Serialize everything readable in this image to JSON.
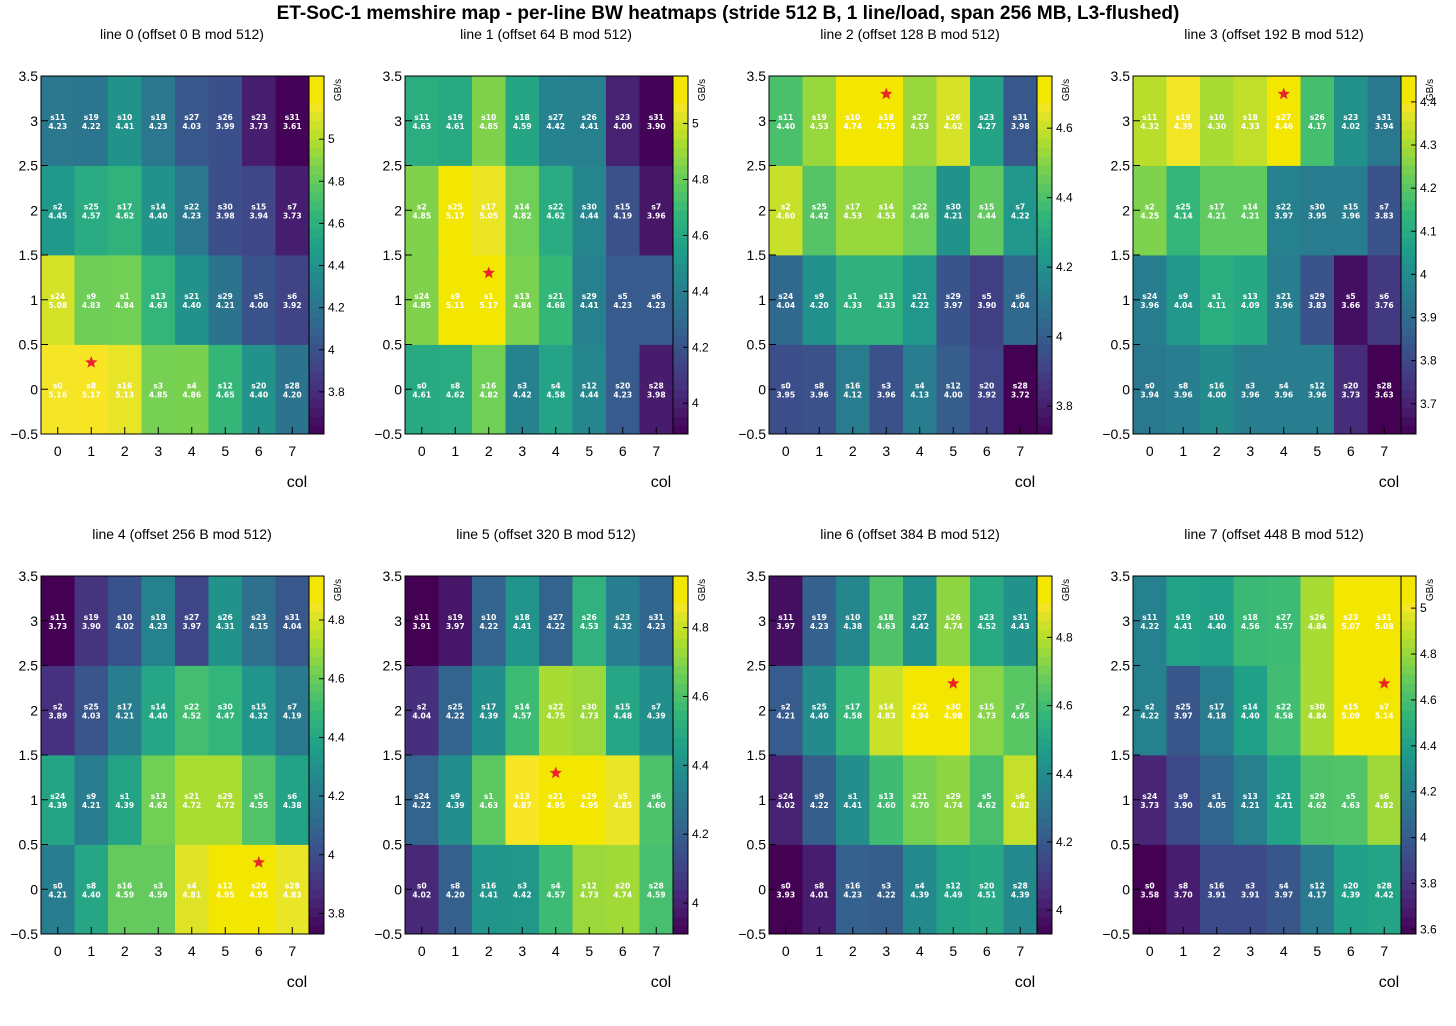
{
  "title": "ET-SoC-1 memshire map  -  per-line BW heatmaps  (stride 512 B, 1 line/load, span 256 MB, L3-flushed)",
  "colormap": "viridis",
  "star_color": "#e8262a",
  "chart_data": [
    {
      "type": "heatmap",
      "title": "line 0  (offset 0 B mod 512)",
      "xlabel": "col",
      "colorbar_label": "GB/s",
      "x": [
        0,
        1,
        2,
        3,
        4,
        5,
        6,
        7
      ],
      "y": [
        0,
        1,
        2,
        3
      ],
      "xlim": [
        -0.5,
        7.5
      ],
      "ylim": [
        -0.5,
        3.5
      ],
      "xticks": [
        "0",
        "1",
        "2",
        "3",
        "4",
        "5",
        "6",
        "7"
      ],
      "yticks": [
        "−0.5",
        "0",
        "0.5",
        "1",
        "1.5",
        "2",
        "2.5",
        "3",
        "3.5"
      ],
      "zrange": [
        3.6,
        5.3
      ],
      "colorbar_ticks": [
        "3.8",
        "4",
        "4.2",
        "4.4",
        "4.6",
        "4.8",
        "5"
      ],
      "labels": [
        [
          "s0",
          "s8",
          "s16",
          "s3",
          "s4",
          "s12",
          "s20",
          "s28"
        ],
        [
          "s24",
          "s9",
          "s1",
          "s13",
          "s21",
          "s29",
          "s5",
          "s6"
        ],
        [
          "s2",
          "s25",
          "s17",
          "s14",
          "s22",
          "s30",
          "s15",
          "s7"
        ],
        [
          "s11",
          "s19",
          "s10",
          "s18",
          "s27",
          "s26",
          "s23",
          "s31"
        ]
      ],
      "values": [
        [
          "5.16",
          "5.17",
          "5.13",
          "4.85",
          "4.86",
          "4.65",
          "4.40",
          "4.20"
        ],
        [
          "5.08",
          "4.83",
          "4.84",
          "4.63",
          "4.40",
          "4.21",
          "4.00",
          "3.92"
        ],
        [
          "4.45",
          "4.57",
          "4.62",
          "4.40",
          "4.23",
          "3.98",
          "3.94",
          "3.73"
        ],
        [
          "4.23",
          "4.22",
          "4.41",
          "4.23",
          "4.03",
          "3.99",
          "3.73",
          "3.61"
        ]
      ],
      "max_marker": {
        "col": 1,
        "row": 0
      }
    },
    {
      "type": "heatmap",
      "title": "line 1  (offset 64 B mod 512)",
      "xlabel": "col",
      "colorbar_label": "GB/s",
      "x": [
        0,
        1,
        2,
        3,
        4,
        5,
        6,
        7
      ],
      "y": [
        0,
        1,
        2,
        3
      ],
      "xlim": [
        -0.5,
        7.5
      ],
      "ylim": [
        -0.5,
        3.5
      ],
      "xticks": [
        "0",
        "1",
        "2",
        "3",
        "4",
        "5",
        "6",
        "7"
      ],
      "yticks": [
        "−0.5",
        "0",
        "0.5",
        "1",
        "1.5",
        "2",
        "2.5",
        "3",
        "3.5"
      ],
      "zrange": [
        3.89,
        5.17
      ],
      "colorbar_ticks": [
        "4",
        "4.2",
        "4.4",
        "4.6",
        "4.8",
        "5"
      ],
      "labels": [
        [
          "s0",
          "s8",
          "s16",
          "s3",
          "s4",
          "s12",
          "s20",
          "s28"
        ],
        [
          "s24",
          "s9",
          "s1",
          "s13",
          "s21",
          "s29",
          "s5",
          "s6"
        ],
        [
          "s2",
          "s25",
          "s17",
          "s14",
          "s22",
          "s30",
          "s15",
          "s7"
        ],
        [
          "s11",
          "s19",
          "s10",
          "s18",
          "s27",
          "s26",
          "s23",
          "s31"
        ]
      ],
      "values": [
        [
          "4.61",
          "4.62",
          "4.82",
          "4.42",
          "4.58",
          "4.44",
          "4.23",
          "3.98"
        ],
        [
          "4.85",
          "5.11",
          "5.17",
          "4.84",
          "4.68",
          "4.41",
          "4.23",
          "4.23"
        ],
        [
          "4.85",
          "5.17",
          "5.05",
          "4.82",
          "4.62",
          "4.44",
          "4.19",
          "3.96"
        ],
        [
          "4.63",
          "4.61",
          "4.85",
          "4.59",
          "4.42",
          "4.41",
          "4.00",
          "3.90"
        ]
      ],
      "max_marker": {
        "col": 2,
        "row": 1
      }
    },
    {
      "type": "heatmap",
      "title": "line 2  (offset 128 B mod 512)",
      "xlabel": "col",
      "colorbar_label": "GB/s",
      "x": [
        0,
        1,
        2,
        3,
        4,
        5,
        6,
        7
      ],
      "y": [
        0,
        1,
        2,
        3
      ],
      "xlim": [
        -0.5,
        7.5
      ],
      "ylim": [
        -0.5,
        3.5
      ],
      "xticks": [
        "0",
        "1",
        "2",
        "3",
        "4",
        "5",
        "6",
        "7"
      ],
      "yticks": [
        "−0.5",
        "0",
        "0.5",
        "1",
        "1.5",
        "2",
        "2.5",
        "3",
        "3.5"
      ],
      "zrange": [
        3.72,
        4.75
      ],
      "colorbar_ticks": [
        "3.8",
        "4",
        "4.2",
        "4.4",
        "4.6"
      ],
      "labels": [
        [
          "s0",
          "s8",
          "s16",
          "s3",
          "s4",
          "s12",
          "s20",
          "s28"
        ],
        [
          "s24",
          "s9",
          "s1",
          "s13",
          "s21",
          "s29",
          "s5",
          "s6"
        ],
        [
          "s2",
          "s25",
          "s17",
          "s14",
          "s22",
          "s30",
          "s15",
          "s7"
        ],
        [
          "s11",
          "s19",
          "s10",
          "s18",
          "s27",
          "s26",
          "s23",
          "s31"
        ]
      ],
      "values": [
        [
          "3.95",
          "3.96",
          "4.12",
          "3.96",
          "4.13",
          "4.00",
          "3.92",
          "3.72"
        ],
        [
          "4.04",
          "4.20",
          "4.33",
          "4.33",
          "4.22",
          "3.97",
          "3.90",
          "4.04"
        ],
        [
          "4.60",
          "4.42",
          "4.53",
          "4.53",
          "4.46",
          "4.21",
          "4.44",
          "4.22"
        ],
        [
          "4.40",
          "4.53",
          "4.74",
          "4.75",
          "4.53",
          "4.62",
          "4.27",
          "3.98"
        ]
      ],
      "max_marker": {
        "col": 3,
        "row": 3
      }
    },
    {
      "type": "heatmap",
      "title": "line 3  (offset 192 B mod 512)",
      "xlabel": "col",
      "colorbar_label": "GB/s",
      "x": [
        0,
        1,
        2,
        3,
        4,
        5,
        6,
        7
      ],
      "y": [
        0,
        1,
        2,
        3
      ],
      "xlim": [
        -0.5,
        7.5
      ],
      "ylim": [
        -0.5,
        3.5
      ],
      "xticks": [
        "0",
        "1",
        "2",
        "3",
        "4",
        "5",
        "6",
        "7"
      ],
      "yticks": [
        "−0.5",
        "0",
        "0.5",
        "1",
        "1.5",
        "2",
        "2.5",
        "3",
        "3.5"
      ],
      "zrange": [
        3.63,
        4.46
      ],
      "colorbar_ticks": [
        "3.7",
        "3.8",
        "3.9",
        "4",
        "4.1",
        "4.2",
        "4.3",
        "4.4"
      ],
      "labels": [
        [
          "s0",
          "s8",
          "s16",
          "s3",
          "s4",
          "s12",
          "s20",
          "s28"
        ],
        [
          "s24",
          "s9",
          "s1",
          "s13",
          "s21",
          "s29",
          "s5",
          "s6"
        ],
        [
          "s2",
          "s25",
          "s17",
          "s14",
          "s22",
          "s30",
          "s15",
          "s7"
        ],
        [
          "s11",
          "s19",
          "s10",
          "s18",
          "s27",
          "s26",
          "s23",
          "s31"
        ]
      ],
      "values": [
        [
          "3.94",
          "3.96",
          "4.00",
          "3.96",
          "3.96",
          "3.96",
          "3.73",
          "3.63"
        ],
        [
          "3.96",
          "4.04",
          "4.11",
          "4.09",
          "3.96",
          "3.83",
          "3.66",
          "3.76"
        ],
        [
          "4.25",
          "4.14",
          "4.21",
          "4.21",
          "3.97",
          "3.95",
          "3.96",
          "3.83"
        ],
        [
          "4.32",
          "4.39",
          "4.30",
          "4.33",
          "4.46",
          "4.17",
          "4.02",
          "3.94"
        ]
      ],
      "max_marker": {
        "col": 4,
        "row": 3
      }
    },
    {
      "type": "heatmap",
      "title": "line 4  (offset 256 B mod 512)",
      "xlabel": "col",
      "colorbar_label": "GB/s",
      "x": [
        0,
        1,
        2,
        3,
        4,
        5,
        6,
        7
      ],
      "y": [
        0,
        1,
        2,
        3
      ],
      "xlim": [
        -0.5,
        7.5
      ],
      "ylim": [
        -0.5,
        3.5
      ],
      "xticks": [
        "0",
        "1",
        "2",
        "3",
        "4",
        "5",
        "6",
        "7"
      ],
      "yticks": [
        "−0.5",
        "0",
        "0.5",
        "1",
        "1.5",
        "2",
        "2.5",
        "3",
        "3.5"
      ],
      "zrange": [
        3.73,
        4.95
      ],
      "colorbar_ticks": [
        "3.8",
        "4",
        "4.2",
        "4.4",
        "4.6",
        "4.8"
      ],
      "labels": [
        [
          "s0",
          "s8",
          "s16",
          "s3",
          "s4",
          "s12",
          "s20",
          "s28"
        ],
        [
          "s24",
          "s9",
          "s1",
          "s13",
          "s21",
          "s29",
          "s5",
          "s6"
        ],
        [
          "s2",
          "s25",
          "s17",
          "s14",
          "s22",
          "s30",
          "s15",
          "s7"
        ],
        [
          "s11",
          "s19",
          "s10",
          "s18",
          "s27",
          "s26",
          "s23",
          "s31"
        ]
      ],
      "values": [
        [
          "4.21",
          "4.40",
          "4.59",
          "4.59",
          "4.81",
          "4.95",
          "4.95",
          "4.83"
        ],
        [
          "4.39",
          "4.21",
          "4.39",
          "4.62",
          "4.72",
          "4.72",
          "4.55",
          "4.38"
        ],
        [
          "3.89",
          "4.03",
          "4.21",
          "4.40",
          "4.52",
          "4.47",
          "4.32",
          "4.19"
        ],
        [
          "3.73",
          "3.90",
          "4.02",
          "4.23",
          "3.97",
          "4.31",
          "4.15",
          "4.04"
        ]
      ],
      "max_marker": {
        "col": 6,
        "row": 0
      }
    },
    {
      "type": "heatmap",
      "title": "line 5  (offset 320 B mod 512)",
      "xlabel": "col",
      "colorbar_label": "GB/s",
      "x": [
        0,
        1,
        2,
        3,
        4,
        5,
        6,
        7
      ],
      "y": [
        0,
        1,
        2,
        3
      ],
      "xlim": [
        -0.5,
        7.5
      ],
      "ylim": [
        -0.5,
        3.5
      ],
      "xticks": [
        "0",
        "1",
        "2",
        "3",
        "4",
        "5",
        "6",
        "7"
      ],
      "yticks": [
        "−0.5",
        "0",
        "0.5",
        "1",
        "1.5",
        "2",
        "2.5",
        "3",
        "3.5"
      ],
      "zrange": [
        3.91,
        4.95
      ],
      "colorbar_ticks": [
        "4",
        "4.2",
        "4.4",
        "4.6",
        "4.8"
      ],
      "labels": [
        [
          "s0",
          "s8",
          "s16",
          "s3",
          "s4",
          "s12",
          "s20",
          "s28"
        ],
        [
          "s24",
          "s9",
          "s1",
          "s13",
          "s21",
          "s29",
          "s5",
          "s6"
        ],
        [
          "s2",
          "s25",
          "s17",
          "s14",
          "s22",
          "s30",
          "s15",
          "s7"
        ],
        [
          "s11",
          "s19",
          "s10",
          "s18",
          "s27",
          "s26",
          "s23",
          "s31"
        ]
      ],
      "values": [
        [
          "4.02",
          "4.20",
          "4.41",
          "4.42",
          "4.57",
          "4.73",
          "4.74",
          "4.59"
        ],
        [
          "4.22",
          "4.39",
          "4.63",
          "4.87",
          "4.95",
          "4.95",
          "4.85",
          "4.60"
        ],
        [
          "4.04",
          "4.22",
          "4.39",
          "4.57",
          "4.75",
          "4.73",
          "4.48",
          "4.39"
        ],
        [
          "3.91",
          "3.97",
          "4.22",
          "4.41",
          "4.22",
          "4.53",
          "4.32",
          "4.23"
        ]
      ],
      "max_marker": {
        "col": 4,
        "row": 1
      }
    },
    {
      "type": "heatmap",
      "title": "line 6  (offset 384 B mod 512)",
      "xlabel": "col",
      "colorbar_label": "GB/s",
      "x": [
        0,
        1,
        2,
        3,
        4,
        5,
        6,
        7
      ],
      "y": [
        0,
        1,
        2,
        3
      ],
      "xlim": [
        -0.5,
        7.5
      ],
      "ylim": [
        -0.5,
        3.5
      ],
      "xticks": [
        "0",
        "1",
        "2",
        "3",
        "4",
        "5",
        "6",
        "7"
      ],
      "yticks": [
        "−0.5",
        "0",
        "0.5",
        "1",
        "1.5",
        "2",
        "2.5",
        "3",
        "3.5"
      ],
      "zrange": [
        3.93,
        4.98
      ],
      "colorbar_ticks": [
        "4",
        "4.2",
        "4.4",
        "4.6",
        "4.8"
      ],
      "labels": [
        [
          "s0",
          "s8",
          "s16",
          "s3",
          "s4",
          "s12",
          "s20",
          "s28"
        ],
        [
          "s24",
          "s9",
          "s1",
          "s13",
          "s21",
          "s29",
          "s5",
          "s6"
        ],
        [
          "s2",
          "s25",
          "s17",
          "s14",
          "s22",
          "s30",
          "s15",
          "s7"
        ],
        [
          "s11",
          "s19",
          "s10",
          "s18",
          "s27",
          "s26",
          "s23",
          "s31"
        ]
      ],
      "values": [
        [
          "3.93",
          "4.01",
          "4.23",
          "4.22",
          "4.39",
          "4.49",
          "4.51",
          "4.39"
        ],
        [
          "4.02",
          "4.22",
          "4.41",
          "4.60",
          "4.70",
          "4.74",
          "4.62",
          "4.82"
        ],
        [
          "4.21",
          "4.40",
          "4.58",
          "4.83",
          "4.94",
          "4.98",
          "4.73",
          "4.65"
        ],
        [
          "3.97",
          "4.23",
          "4.38",
          "4.63",
          "4.42",
          "4.74",
          "4.52",
          "4.43"
        ]
      ],
      "max_marker": {
        "col": 5,
        "row": 2
      }
    },
    {
      "type": "heatmap",
      "title": "line 7  (offset 448 B mod 512)",
      "xlabel": "col",
      "colorbar_label": "GB/s",
      "x": [
        0,
        1,
        2,
        3,
        4,
        5,
        6,
        7
      ],
      "y": [
        0,
        1,
        2,
        3
      ],
      "xlim": [
        -0.5,
        7.5
      ],
      "ylim": [
        -0.5,
        3.5
      ],
      "xticks": [
        "0",
        "1",
        "2",
        "3",
        "4",
        "5",
        "6",
        "7"
      ],
      "yticks": [
        "−0.5",
        "0",
        "0.5",
        "1",
        "1.5",
        "2",
        "2.5",
        "3",
        "3.5"
      ],
      "zrange": [
        3.58,
        5.14
      ],
      "colorbar_ticks": [
        "3.6",
        "3.8",
        "4",
        "4.2",
        "4.4",
        "4.6",
        "4.8",
        "5"
      ],
      "labels": [
        [
          "s0",
          "s8",
          "s16",
          "s3",
          "s4",
          "s12",
          "s20",
          "s28"
        ],
        [
          "s24",
          "s9",
          "s1",
          "s13",
          "s21",
          "s29",
          "s5",
          "s6"
        ],
        [
          "s2",
          "s25",
          "s17",
          "s14",
          "s22",
          "s30",
          "s15",
          "s7"
        ],
        [
          "s11",
          "s19",
          "s10",
          "s18",
          "s27",
          "s26",
          "s23",
          "s31"
        ]
      ],
      "values": [
        [
          "3.58",
          "3.70",
          "3.91",
          "3.91",
          "3.97",
          "4.17",
          "4.39",
          "4.42"
        ],
        [
          "3.73",
          "3.90",
          "4.05",
          "4.21",
          "4.41",
          "4.62",
          "4.63",
          "4.82"
        ],
        [
          "4.22",
          "3.97",
          "4.18",
          "4.40",
          "4.58",
          "4.84",
          "5.09",
          "5.14"
        ],
        [
          "4.22",
          "4.41",
          "4.40",
          "4.56",
          "4.57",
          "4.84",
          "5.07",
          "5.08"
        ]
      ],
      "max_marker": {
        "col": 7,
        "row": 2
      }
    }
  ]
}
